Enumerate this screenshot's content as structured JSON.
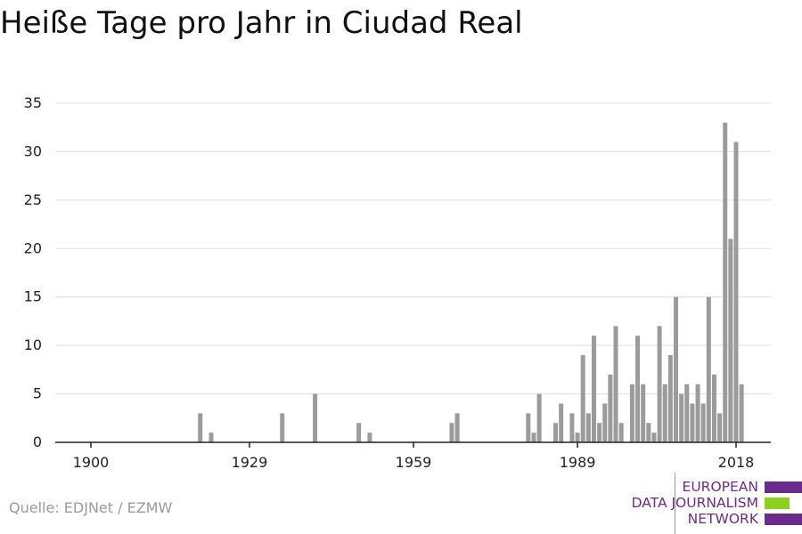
{
  "title": "Heiße Tage pro Jahr in Ciudad Real",
  "source": "Quelle: EDJNet / EZMW",
  "logo": {
    "lines": [
      "EUROPEAN",
      "DATA JOURNALISM",
      "NETWORK"
    ],
    "colors": {
      "purple": "#6b2b8d",
      "green": "#8ccf1f"
    }
  },
  "colors": {
    "bar": "#9b9b9b",
    "grid": "#dddddd",
    "axis": "#222222"
  },
  "chart_data": {
    "type": "bar",
    "title": "Heiße Tage pro Jahr in Ciudad Real",
    "xlabel": "",
    "ylabel": "",
    "xlim": [
      1900,
      2018
    ],
    "ylim": [
      0,
      35
    ],
    "x_ticks": [
      1900,
      1929,
      1959,
      1989,
      2018
    ],
    "y_ticks": [
      0,
      5,
      10,
      15,
      20,
      25,
      30,
      35
    ],
    "grid": true,
    "x": [
      1920,
      1922,
      1935,
      1941,
      1949,
      1951,
      1966,
      1967,
      1980,
      1981,
      1982,
      1985,
      1986,
      1988,
      1989,
      1990,
      1991,
      1992,
      1993,
      1994,
      1995,
      1996,
      1997,
      1999,
      2000,
      2001,
      2002,
      2003,
      2004,
      2005,
      2006,
      2007,
      2008,
      2009,
      2010,
      2011,
      2012,
      2013,
      2014,
      2015,
      2016,
      2017,
      2018,
      2019
    ],
    "values": [
      3,
      1,
      3,
      5,
      2,
      1,
      2,
      3,
      3,
      1,
      5,
      2,
      4,
      3,
      1,
      9,
      3,
      11,
      2,
      4,
      7,
      12,
      2,
      6,
      11,
      6,
      2,
      1,
      12,
      6,
      9,
      15,
      5,
      6,
      4,
      6,
      4,
      15,
      7,
      3,
      33,
      21,
      31,
      6
    ]
  }
}
